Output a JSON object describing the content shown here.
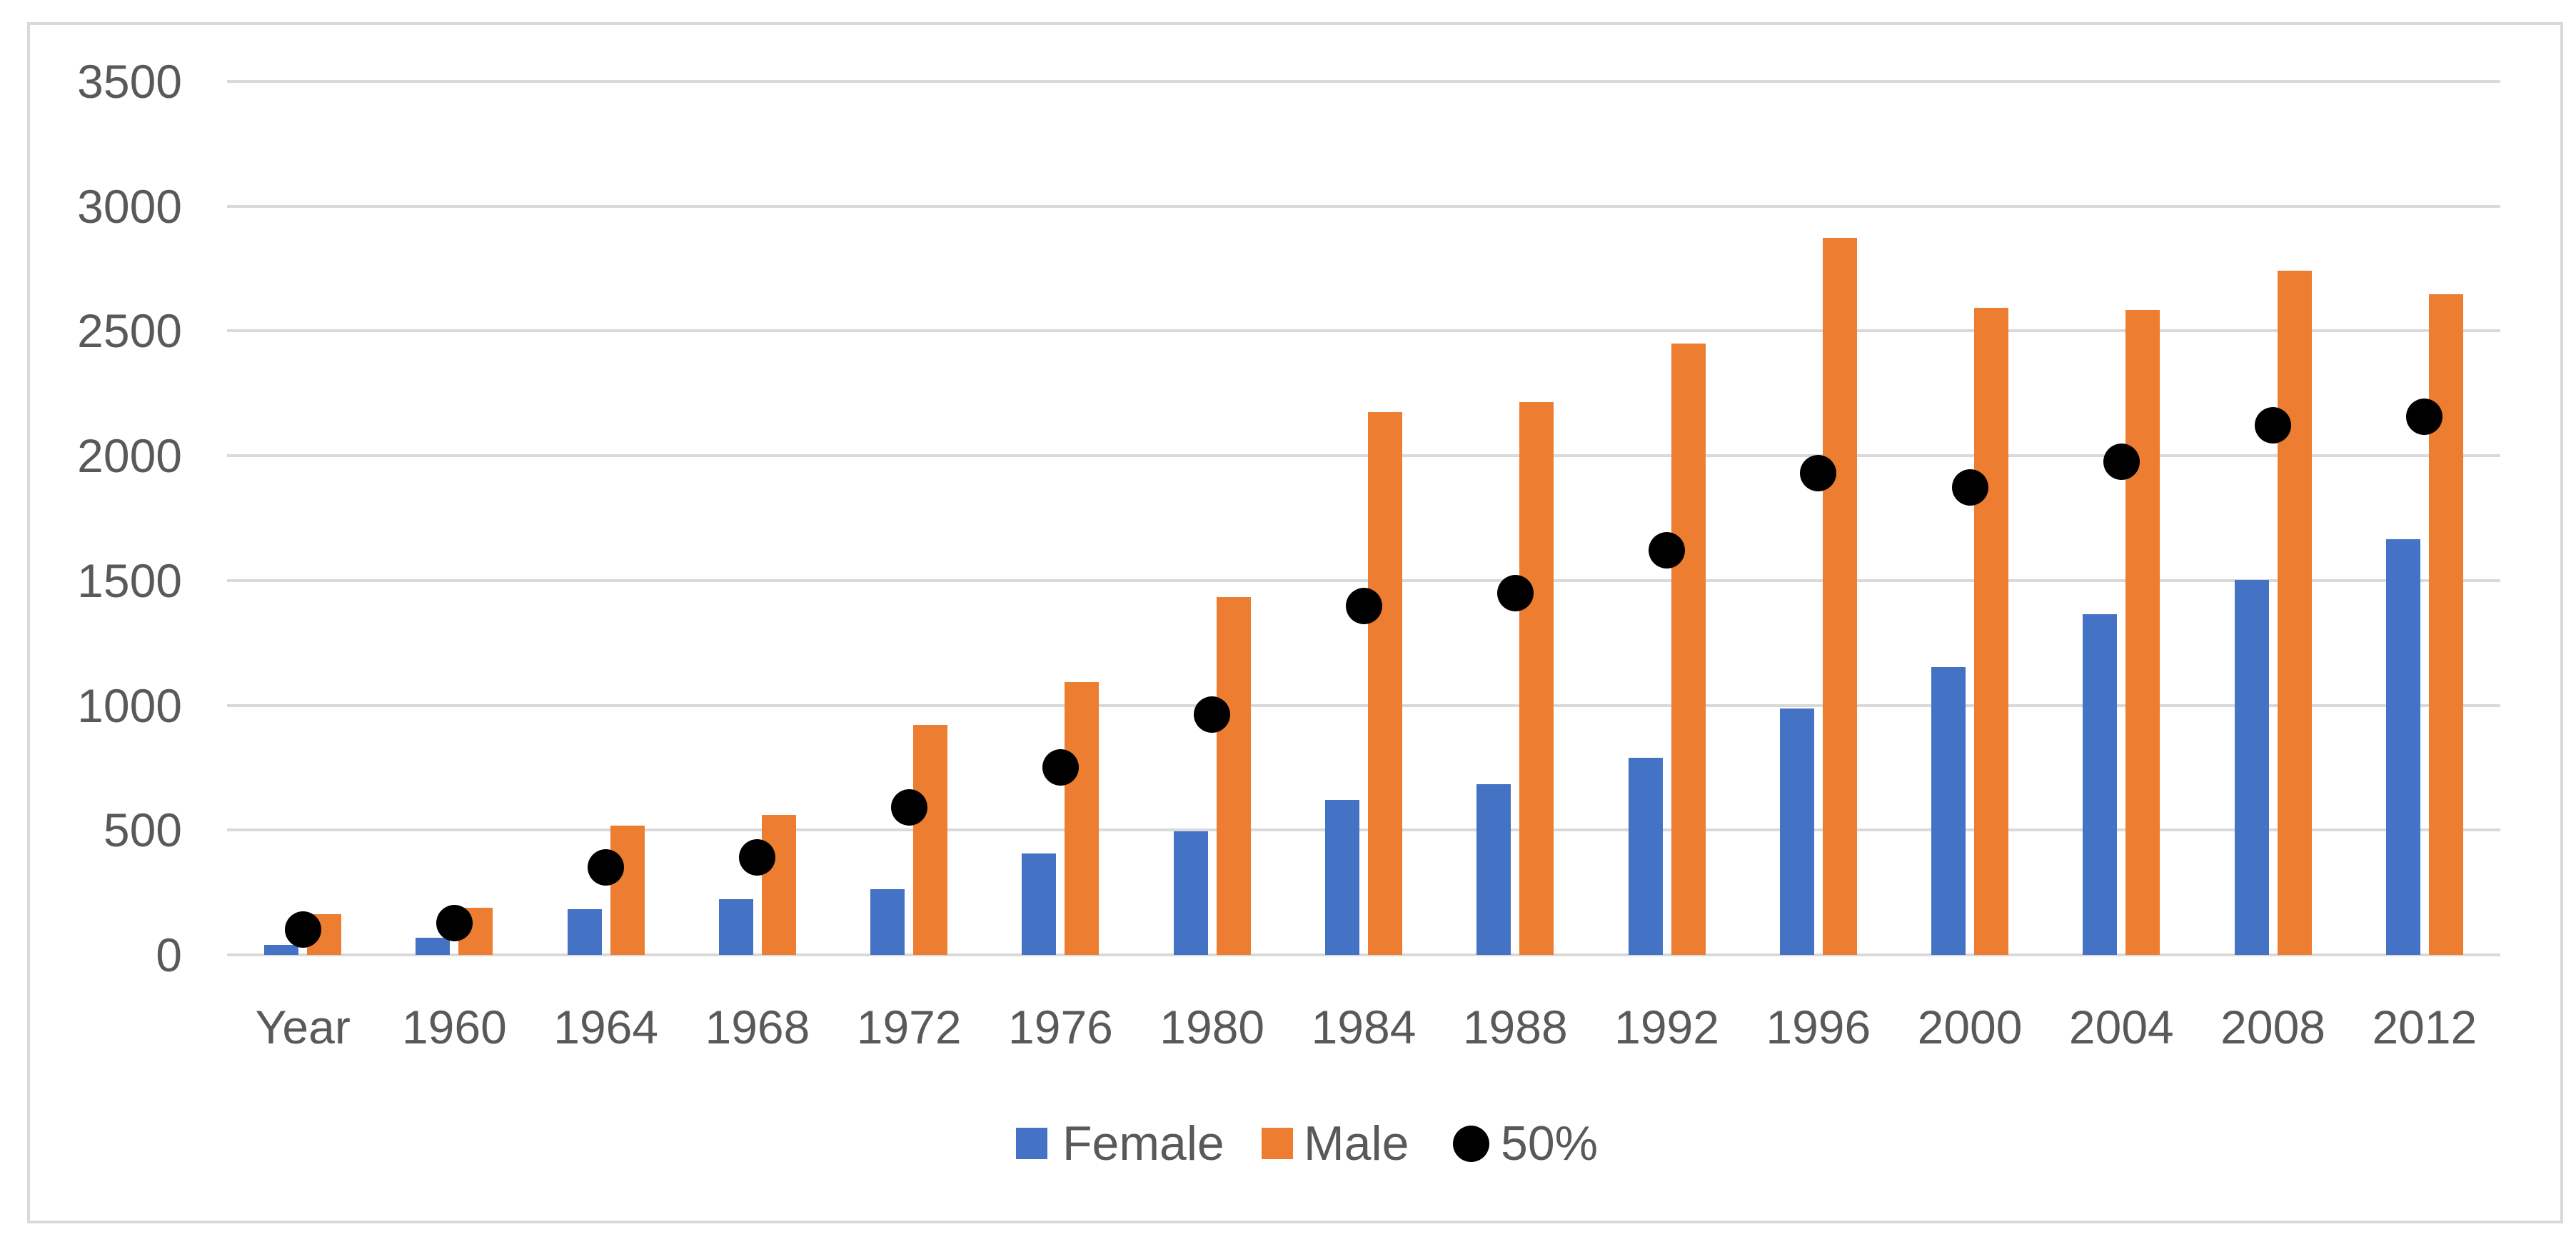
{
  "chart_data": {
    "type": "bar",
    "title": "",
    "xlabel": "",
    "ylabel": "",
    "categories": [
      "Year",
      "1960",
      "1964",
      "1968",
      "1972",
      "1976",
      "1980",
      "1984",
      "1988",
      "1992",
      "1996",
      "2000",
      "2004",
      "2008",
      "2012"
    ],
    "series": [
      {
        "name": "Female",
        "type": "bar",
        "color": "#4472C4",
        "values": [
          40,
          68,
          182,
          222,
          262,
          406,
          494,
          620,
          684,
          790,
          988,
          1152,
          1366,
          1502,
          1666
        ]
      },
      {
        "name": "Male",
        "type": "bar",
        "color": "#ED7D31",
        "values": [
          164,
          188,
          518,
          562,
          922,
          1094,
          1434,
          2176,
          2214,
          2450,
          2874,
          2592,
          2584,
          2742,
          2646
        ]
      },
      {
        "name": "50%",
        "type": "scatter",
        "color": "#000000",
        "values": [
          102,
          128,
          350,
          392,
          592,
          750,
          964,
          1398,
          1449,
          1620,
          1931,
          1872,
          1975,
          2122,
          2156
        ]
      }
    ],
    "ylim": [
      0,
      3500
    ],
    "yticks": [
      0,
      500,
      1000,
      1500,
      2000,
      2500,
      3000,
      3500
    ],
    "grid": true,
    "gridline_color": "#D9D9D9",
    "axis_text_color": "#595959",
    "legend_position": "bottom"
  }
}
